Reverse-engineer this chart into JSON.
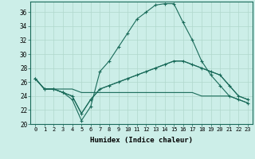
{
  "xlabel": "Humidex (Indice chaleur)",
  "ylabel": "",
  "xlim": [
    -0.5,
    23.5
  ],
  "ylim": [
    20,
    37.5
  ],
  "yticks": [
    20,
    22,
    24,
    26,
    28,
    30,
    32,
    34,
    36
  ],
  "xticks": [
    0,
    1,
    2,
    3,
    4,
    5,
    6,
    7,
    8,
    9,
    10,
    11,
    12,
    13,
    14,
    15,
    16,
    17,
    18,
    19,
    20,
    21,
    22,
    23
  ],
  "bg_color": "#cceee8",
  "grid_color": "#b0d8cc",
  "line_color": "#1a6b5a",
  "line1_with_markers": {
    "x": [
      0,
      1,
      2,
      3,
      4,
      5,
      6,
      7,
      8,
      9,
      10,
      11,
      12,
      13,
      14,
      15,
      16,
      17,
      18,
      19,
      20,
      21,
      22,
      23
    ],
    "y": [
      26.5,
      25.0,
      25.0,
      24.5,
      23.5,
      20.5,
      22.5,
      27.5,
      29.0,
      31.0,
      33.0,
      35.0,
      36.0,
      37.0,
      37.2,
      37.2,
      34.5,
      32.0,
      29.0,
      27.0,
      25.5,
      24.0,
      23.5,
      23.0
    ]
  },
  "line2_with_markers": {
    "x": [
      0,
      1,
      2,
      3,
      4,
      5,
      6,
      7,
      8,
      9,
      10,
      11,
      12,
      13,
      14,
      15,
      16,
      17,
      18,
      19,
      20,
      21,
      22,
      23
    ],
    "y": [
      26.5,
      25.0,
      25.0,
      24.5,
      24.0,
      21.5,
      23.5,
      25.0,
      25.5,
      26.0,
      26.5,
      27.0,
      27.5,
      28.0,
      28.5,
      29.0,
      29.0,
      28.5,
      28.0,
      27.5,
      27.0,
      25.5,
      24.0,
      23.5
    ]
  },
  "line3_no_markers": {
    "x": [
      0,
      1,
      2,
      3,
      4,
      5,
      6,
      7,
      8,
      9,
      10,
      11,
      12,
      13,
      14,
      15,
      16,
      17,
      18,
      19,
      20,
      21,
      22,
      23
    ],
    "y": [
      26.5,
      25.0,
      25.0,
      25.0,
      25.0,
      24.5,
      24.5,
      24.5,
      24.5,
      24.5,
      24.5,
      24.5,
      24.5,
      24.5,
      24.5,
      24.5,
      24.5,
      24.5,
      24.0,
      24.0,
      24.0,
      24.0,
      23.5,
      23.0
    ]
  },
  "line4_no_markers": {
    "x": [
      0,
      1,
      2,
      3,
      4,
      5,
      6,
      7,
      8,
      9,
      10,
      11,
      12,
      13,
      14,
      15,
      16,
      17,
      18,
      19,
      20,
      21,
      22,
      23
    ],
    "y": [
      26.5,
      25.0,
      25.0,
      24.5,
      24.0,
      21.5,
      23.5,
      25.0,
      25.5,
      26.0,
      26.5,
      27.0,
      27.5,
      28.0,
      28.5,
      29.0,
      29.0,
      28.5,
      28.0,
      27.5,
      27.0,
      25.5,
      24.0,
      23.5
    ]
  }
}
